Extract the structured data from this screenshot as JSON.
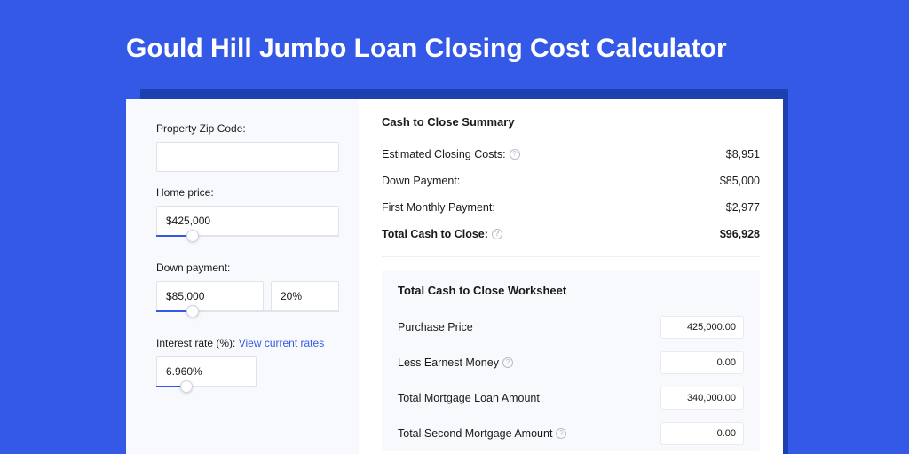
{
  "colors": {
    "page_bg": "#3359e6",
    "shadow_bg": "#1d3fb0",
    "card_bg": "#ffffff",
    "left_panel_bg": "#f7f9fc",
    "worksheet_bg": "#f7f9fc",
    "text": "#1a1a1a",
    "link": "#3359e6",
    "border": "#e0e3ea",
    "help_icon": "#b8bcc7"
  },
  "header": {
    "title": "Gould Hill Jumbo Loan Closing Cost Calculator"
  },
  "inputs": {
    "zip": {
      "label": "Property Zip Code:",
      "value": ""
    },
    "home_price": {
      "label": "Home price:",
      "value": "$425,000",
      "slider_pct": 20
    },
    "down_payment": {
      "label": "Down payment:",
      "value": "$85,000",
      "pct_value": "20%",
      "slider_pct": 20
    },
    "interest": {
      "label": "Interest rate (%): ",
      "link_text": "View current rates",
      "value": "6.960%",
      "slider_pct": 30
    }
  },
  "summary": {
    "heading": "Cash to Close Summary",
    "rows": [
      {
        "label": "Estimated Closing Costs:",
        "value": "$8,951",
        "help": true,
        "bold": false
      },
      {
        "label": "Down Payment:",
        "value": "$85,000",
        "help": false,
        "bold": false
      },
      {
        "label": "First Monthly Payment:",
        "value": "$2,977",
        "help": false,
        "bold": false
      },
      {
        "label": "Total Cash to Close:",
        "value": "$96,928",
        "help": true,
        "bold": true
      }
    ]
  },
  "worksheet": {
    "heading": "Total Cash to Close Worksheet",
    "rows": [
      {
        "label": "Purchase Price",
        "value": "425,000.00",
        "help": false
      },
      {
        "label": "Less Earnest Money",
        "value": "0.00",
        "help": true
      },
      {
        "label": "Total Mortgage Loan Amount",
        "value": "340,000.00",
        "help": false
      },
      {
        "label": "Total Second Mortgage Amount",
        "value": "0.00",
        "help": true
      }
    ]
  }
}
